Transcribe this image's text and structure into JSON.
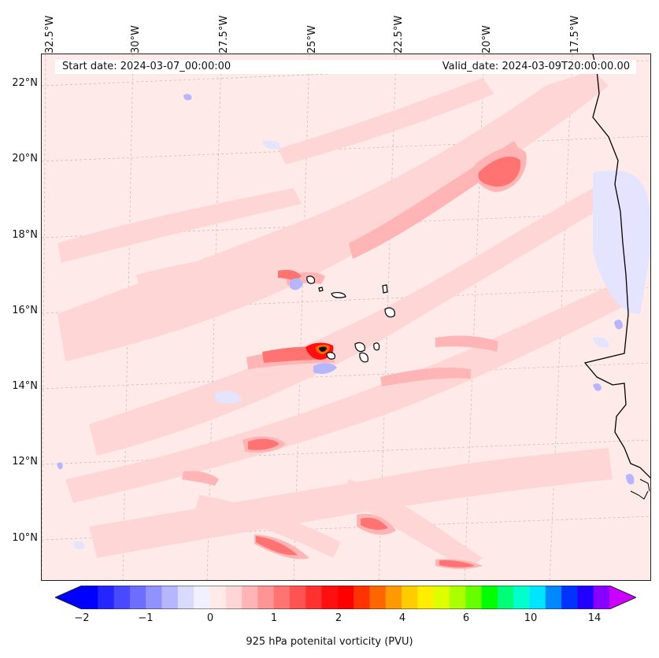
{
  "map": {
    "top_labels": [
      "32.5°W",
      "30°W",
      "27.5°W",
      "25°W",
      "22.5°W",
      "20°W",
      "17.5°W"
    ],
    "left_labels": [
      "22°N",
      "20°N",
      "18°N",
      "16°N",
      "14°N",
      "12°N",
      "10°N"
    ],
    "start_date_text": "Start date: 2024-03-07_00:00:00",
    "valid_date_text": "Valid_date: 2024-03-09T20:00:00.00",
    "background_color": "#ffeaea"
  },
  "colorbar": {
    "title": "925 hPa potenital vorticity (PVU)",
    "ticks": [
      "−2",
      "−1",
      "0",
      "1",
      "2",
      "4",
      "6",
      "10",
      "14"
    ],
    "colors": [
      "#0000ff",
      "#2525ff",
      "#4949ff",
      "#6d6dff",
      "#9292ff",
      "#b6b6ff",
      "#dadaff",
      "#f0f0ff",
      "#ffeaea",
      "#ffd5d5",
      "#ffb5b5",
      "#ff9494",
      "#ff7373",
      "#ff5252",
      "#ff3131",
      "#ff1010",
      "#ff0000",
      "#ff3300",
      "#ff6600",
      "#ff9900",
      "#ffcc00",
      "#ffee00",
      "#ddff00",
      "#aaff00",
      "#66ff00",
      "#00ff00",
      "#00ff77",
      "#00ffcc",
      "#00e5ff",
      "#0088ff",
      "#0033ff",
      "#2200ff",
      "#8800ff"
    ],
    "under_color": "#0000ff",
    "over_color": "#cc00ff"
  }
}
